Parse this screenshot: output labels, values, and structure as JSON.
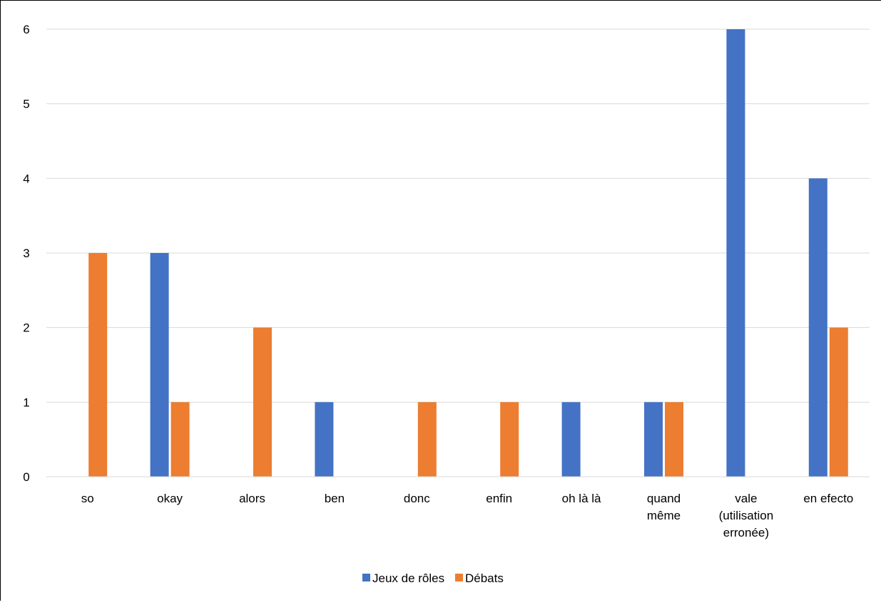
{
  "chart_data": {
    "type": "bar",
    "title": "",
    "xlabel": "",
    "ylabel": "",
    "ylim": [
      0,
      6
    ],
    "yticks": [
      "0",
      "1",
      "2",
      "3",
      "4",
      "5",
      "6"
    ],
    "grid": true,
    "legend_position": "bottom",
    "categories": [
      [
        "so"
      ],
      [
        "okay"
      ],
      [
        "alors"
      ],
      [
        "ben"
      ],
      [
        "donc"
      ],
      [
        "enfin"
      ],
      [
        "oh là là"
      ],
      [
        "quand",
        "même"
      ],
      [
        "vale",
        "(utilisation",
        "erronée)"
      ],
      [
        "en efecto"
      ]
    ],
    "series": [
      {
        "name": "Jeux de rôles",
        "color": "#4472C4",
        "values": [
          0,
          3,
          0,
          1,
          0,
          0,
          1,
          1,
          6,
          4
        ]
      },
      {
        "name": "Débats",
        "color": "#ED7D31",
        "values": [
          3,
          1,
          2,
          0,
          1,
          1,
          0,
          1,
          0,
          2
        ]
      }
    ]
  }
}
